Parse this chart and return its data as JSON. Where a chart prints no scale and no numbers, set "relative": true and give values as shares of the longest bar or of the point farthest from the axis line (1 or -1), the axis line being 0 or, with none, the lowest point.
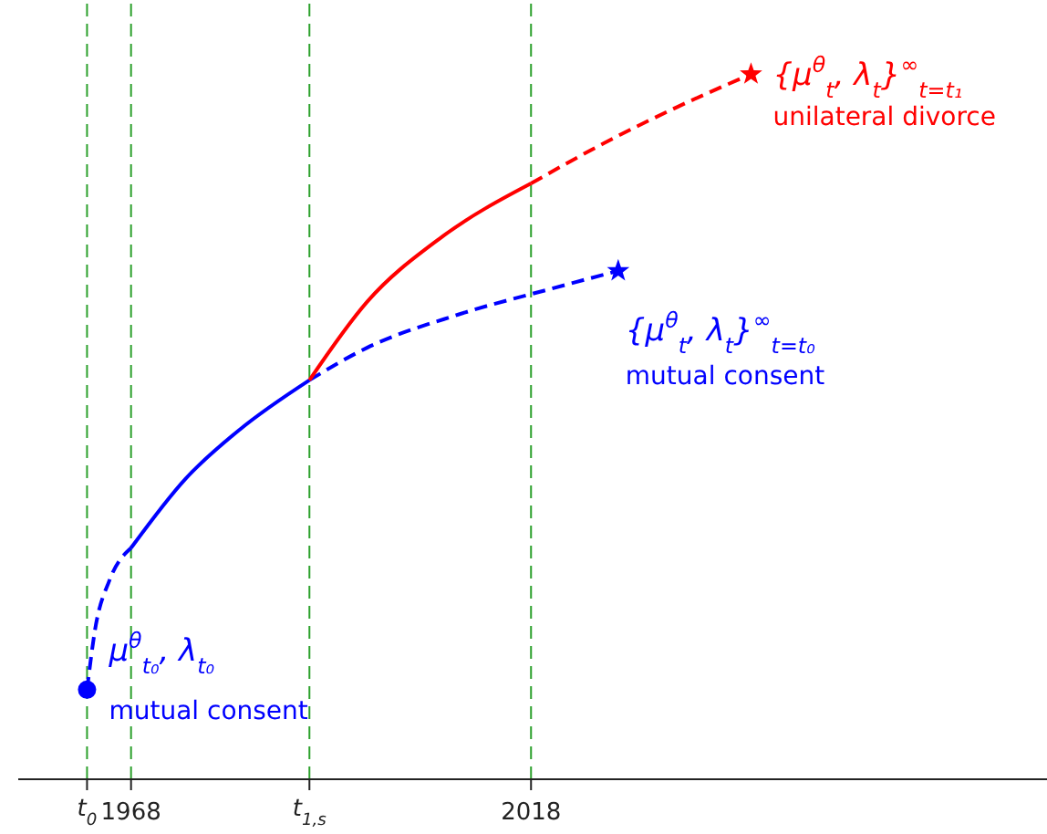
{
  "chart_data": {
    "type": "line",
    "relative": true,
    "xlim": [
      1953.9,
      2082.5
    ],
    "xticks": [
      {
        "value": 1962.5,
        "label": null
      },
      1968,
      {
        "value": 1990.3,
        "label": null
      },
      2018
    ],
    "grid": false,
    "legend": false,
    "series": [
      {
        "color": "#0000ff",
        "line_style": "dashed",
        "x": [
          1962.5,
          1963.5,
          1965.3,
          1968
        ],
        "values": [
          0.127,
          0.212,
          0.282,
          0.328
        ]
      },
      {
        "color": "#0000ff",
        "line_style": "solid",
        "x": [
          1968,
          1974.8,
          1981.6,
          1990.3
        ],
        "values": [
          0.328,
          0.426,
          0.496,
          0.566
        ]
      },
      {
        "color": "#0000ff",
        "line_style": "dashed",
        "x": [
          1990.3,
          1997.5,
          2008.9,
          2020.3,
          2028.9
        ],
        "values": [
          0.566,
          0.612,
          0.659,
          0.695,
          0.721
        ]
      },
      {
        "color": "#ff0000",
        "line_style": "solid",
        "x": [
          1990.3,
          1997.5,
          2006.6,
          2018
        ],
        "values": [
          0.566,
          0.677,
          0.767,
          0.845
        ]
      },
      {
        "color": "#ff0000",
        "line_style": "dashed",
        "x": [
          2018,
          2027.1,
          2036.2,
          2045.5
        ],
        "values": [
          0.845,
          0.902,
          0.953,
          1
        ]
      },
      {
        "type": "scatter",
        "marker": "circle",
        "color": "#0000ff",
        "x": [
          1962.5
        ],
        "values": [
          0.127
        ]
      },
      {
        "type": "scatter",
        "marker": "star",
        "color": "#0000ff",
        "x": [
          2028.9
        ],
        "values": [
          0.721
        ]
      },
      {
        "type": "scatter",
        "marker": "star",
        "color": "#ff0000",
        "x": [
          2045.5
        ],
        "values": [
          1
        ]
      }
    ],
    "ref_lines": [
      {
        "axis": "x",
        "value": 1962.5,
        "color": "#2ca02c",
        "line_style": "dashed",
        "label": "t$_{0}$"
      },
      {
        "axis": "x",
        "value": 1968,
        "color": "#2ca02c",
        "line_style": "dashed"
      },
      {
        "axis": "x",
        "value": 1990.3,
        "color": "#2ca02c",
        "line_style": "dashed",
        "label": "t$_{1,s}$"
      },
      {
        "axis": "x",
        "value": 2018,
        "color": "#2ca02c",
        "line_style": "dashed"
      }
    ],
    "annotations": [
      {
        "text": "{μ$^{θ}$$_{t}$, λ$_{t}$}$^{∞}$$_{t=t₁}$",
        "x": 2045.5,
        "y": 1
      },
      "unilateral divorce",
      {
        "text": "{μ$^{θ}$$_{t}$, λ$_{t}$}$^{∞}$$_{t=t₀}$",
        "x": 2028.9,
        "y": 0.721
      },
      "mutual consent",
      {
        "text": "μ$^{θ}$$_{t₀}$, λ$_{t₀}$",
        "x": 1962.5,
        "y": 0.127
      },
      "mutual consent"
    ]
  }
}
